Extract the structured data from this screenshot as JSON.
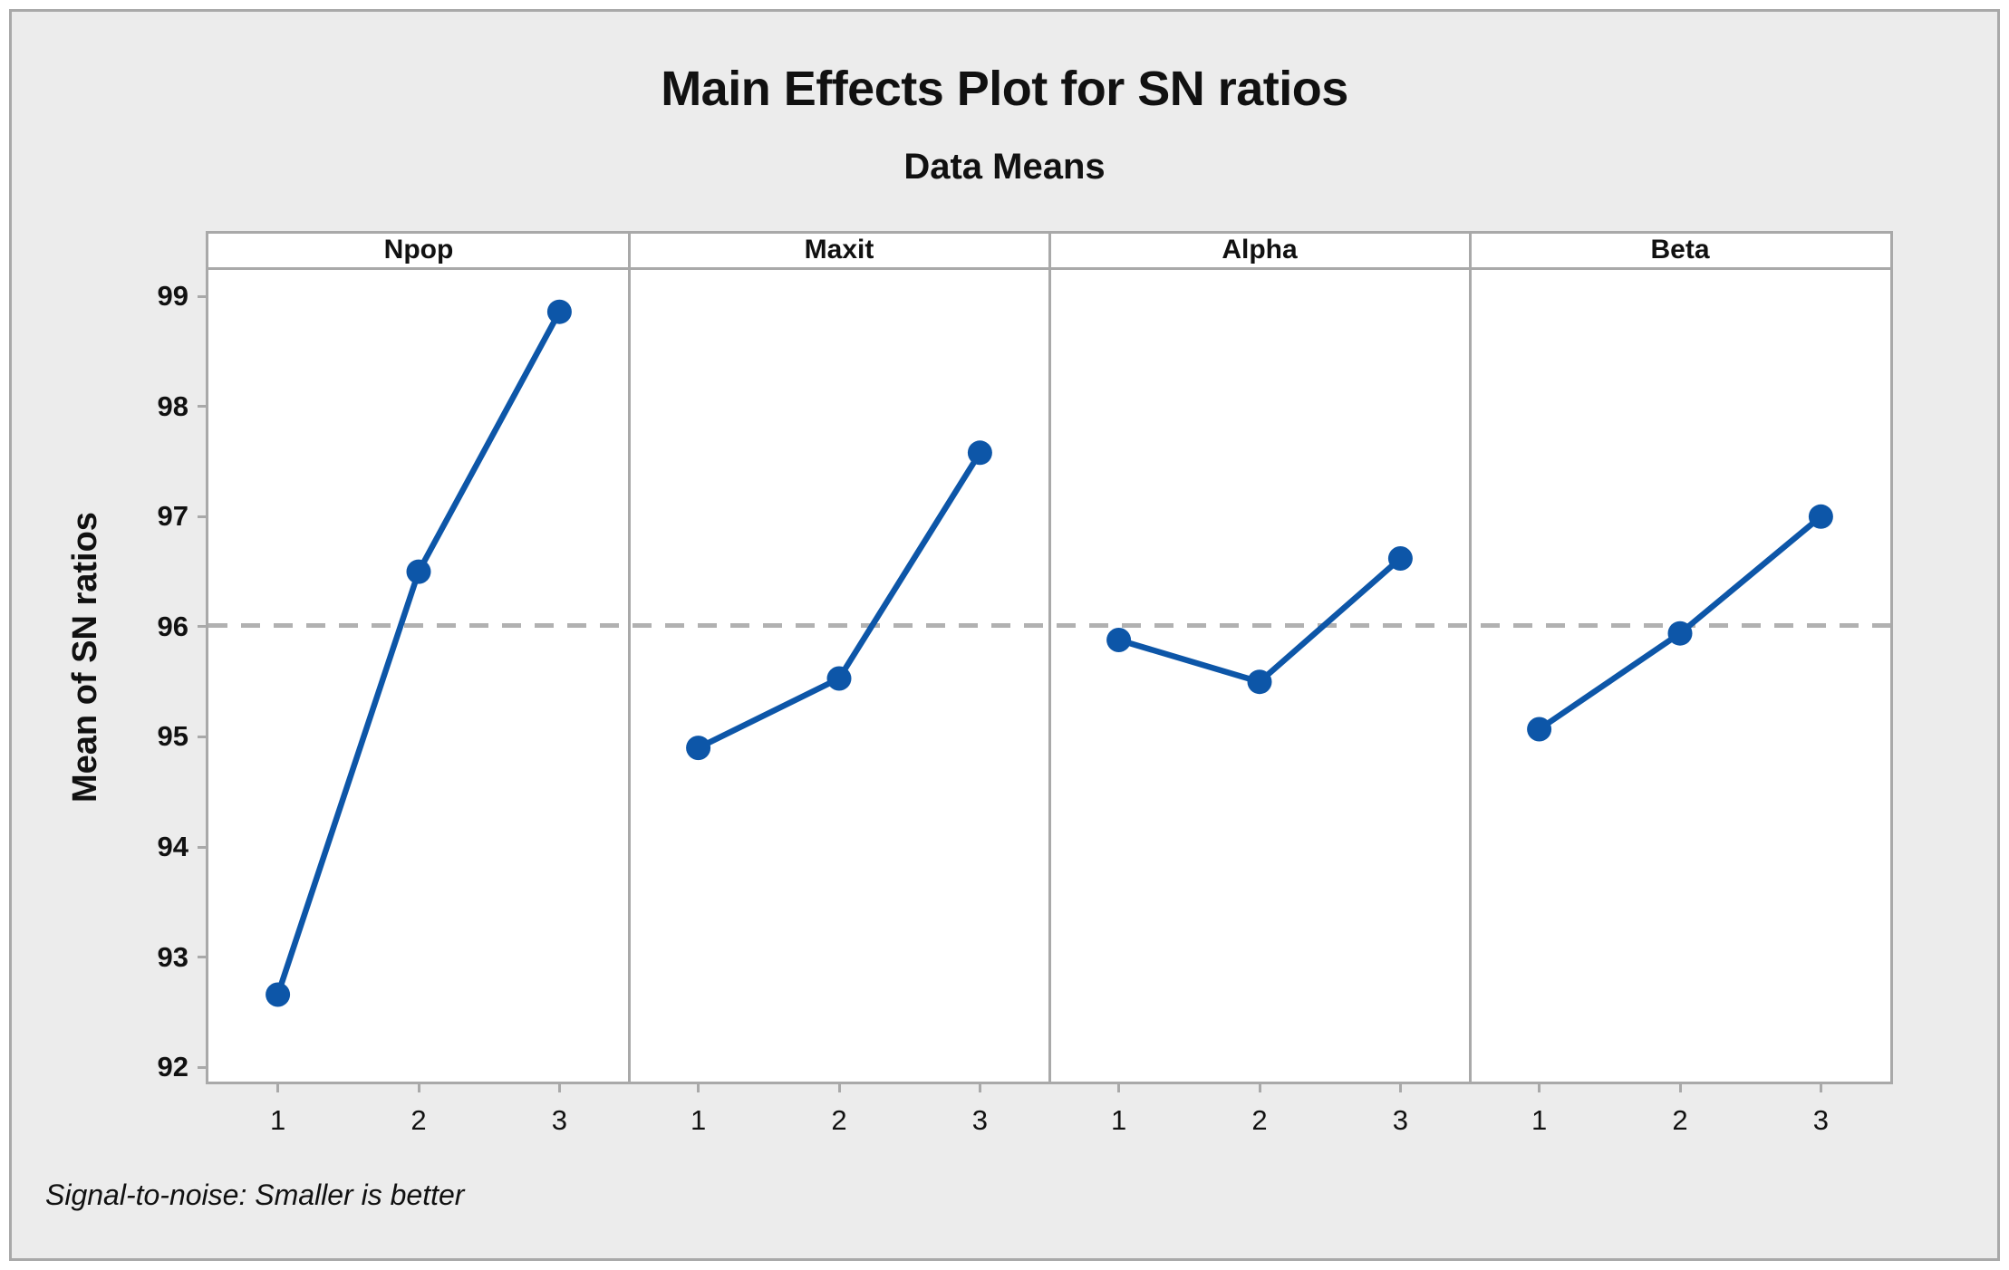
{
  "chart_data": {
    "type": "line",
    "title": "Main Effects Plot for SN ratios",
    "subtitle": "Data Means",
    "ylabel": "Mean of SN ratios",
    "footnote": "Signal-to-noise: Smaller is better",
    "categories": [
      "1",
      "2",
      "3"
    ],
    "series": [
      {
        "name": "Npop",
        "values": [
          92.66,
          96.5,
          98.86
        ]
      },
      {
        "name": "Maxit",
        "values": [
          94.9,
          95.53,
          97.58
        ]
      },
      {
        "name": "Alpha",
        "values": [
          95.88,
          95.5,
          96.62
        ]
      },
      {
        "name": "Beta",
        "values": [
          95.07,
          95.94,
          97.0
        ]
      }
    ],
    "yticks": [
      99,
      98,
      97,
      96,
      95,
      94,
      93,
      92
    ],
    "ylim": [
      91.87,
      99.24
    ],
    "reference_line": 96.01,
    "grid": "off",
    "legend": "none",
    "colors": {
      "series": "#0d56a8",
      "reference_line": "#b1b1b1",
      "panel_border": "#a9a9a9",
      "background": "#ececec",
      "plot_background": "#ffffff"
    }
  }
}
